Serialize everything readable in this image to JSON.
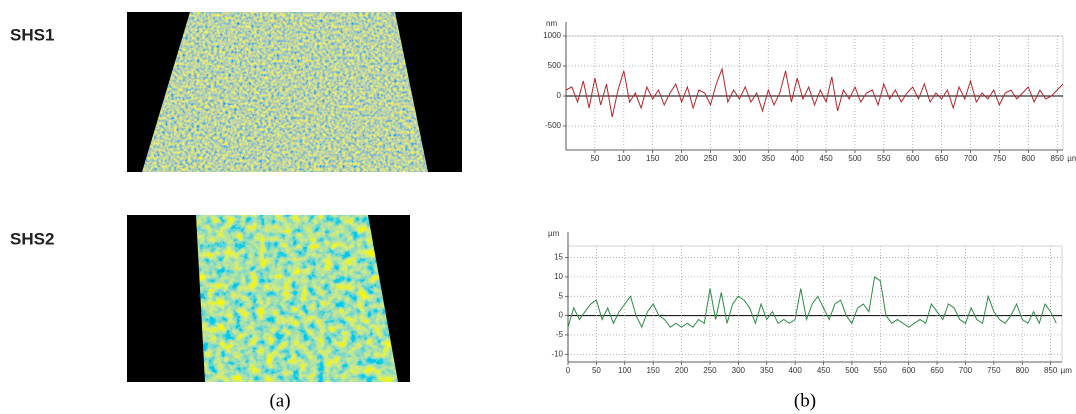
{
  "labels": {
    "sample_1": "SHS1",
    "sample_2": "SHS2",
    "panel_a": "(a)",
    "panel_b": "(b)"
  },
  "chart_data": [
    {
      "type": "line",
      "y_unit": "nm",
      "x_unit": "µm",
      "color": "#b3262b",
      "grid": true,
      "x": [
        0,
        10,
        20,
        30,
        40,
        50,
        60,
        70,
        80,
        90,
        100,
        110,
        120,
        130,
        140,
        150,
        160,
        170,
        180,
        190,
        200,
        210,
        220,
        230,
        240,
        250,
        260,
        270,
        280,
        290,
        300,
        310,
        320,
        330,
        340,
        350,
        360,
        370,
        380,
        390,
        400,
        410,
        420,
        430,
        440,
        450,
        460,
        470,
        480,
        490,
        500,
        510,
        520,
        530,
        540,
        550,
        560,
        570,
        580,
        590,
        600,
        610,
        620,
        630,
        640,
        650,
        660,
        670,
        680,
        690,
        700,
        710,
        720,
        730,
        740,
        750,
        760,
        770,
        780,
        790,
        800,
        810,
        820,
        830,
        840,
        850,
        860
      ],
      "values": [
        100,
        150,
        -100,
        250,
        -200,
        300,
        -150,
        200,
        -350,
        100,
        420,
        -100,
        50,
        -200,
        150,
        -50,
        100,
        -150,
        50,
        200,
        -100,
        150,
        -200,
        100,
        50,
        -150,
        200,
        450,
        -100,
        100,
        -50,
        150,
        -100,
        50,
        -250,
        100,
        -150,
        50,
        420,
        -100,
        300,
        -50,
        150,
        -150,
        100,
        -100,
        320,
        -250,
        100,
        -50,
        150,
        -100,
        50,
        100,
        -150,
        200,
        -50,
        100,
        -100,
        50,
        150,
        -50,
        200,
        -100,
        50,
        -50,
        100,
        -200,
        150,
        -50,
        250,
        -100,
        50,
        -50,
        100,
        -150,
        50,
        100,
        -50,
        50,
        150,
        -100,
        100,
        -50,
        0,
        100,
        200
      ],
      "xlim": [
        0,
        860
      ],
      "ylim": [
        -900,
        1000
      ],
      "xticks": [
        50,
        100,
        150,
        200,
        250,
        300,
        350,
        400,
        450,
        500,
        550,
        600,
        650,
        700,
        750,
        800,
        850
      ],
      "yticks": [
        1000,
        500,
        0,
        -500
      ]
    },
    {
      "type": "line",
      "y_unit": "µm",
      "x_unit": "µm",
      "color": "#2e8b45",
      "grid": true,
      "x": [
        0,
        10,
        20,
        30,
        40,
        50,
        60,
        70,
        80,
        90,
        100,
        110,
        120,
        130,
        140,
        150,
        160,
        170,
        180,
        190,
        200,
        210,
        220,
        230,
        240,
        250,
        260,
        270,
        280,
        290,
        300,
        310,
        320,
        330,
        340,
        350,
        360,
        370,
        380,
        390,
        400,
        410,
        420,
        430,
        440,
        450,
        460,
        470,
        480,
        490,
        500,
        510,
        520,
        530,
        540,
        550,
        560,
        570,
        580,
        590,
        600,
        610,
        620,
        630,
        640,
        650,
        660,
        670,
        680,
        690,
        700,
        710,
        720,
        730,
        740,
        750,
        760,
        770,
        780,
        790,
        800,
        810,
        820,
        830,
        840,
        850,
        860
      ],
      "values": [
        -3,
        2,
        -1,
        1,
        3,
        4,
        -1,
        2,
        -2,
        1,
        3,
        5,
        0,
        -3,
        1,
        3,
        0,
        -1,
        -3,
        -2,
        -3,
        -2,
        -3,
        -1,
        -2,
        7,
        -1,
        6,
        -2,
        3,
        5,
        4,
        2,
        -2,
        3,
        -1,
        1,
        -2,
        -1,
        -2,
        -1,
        7,
        -1,
        3,
        5,
        2,
        -1,
        3,
        4,
        0,
        -2,
        2,
        3,
        1,
        10,
        9,
        0,
        -2,
        -1,
        -2,
        -3,
        -2,
        -1,
        -2,
        3,
        1,
        -1,
        3,
        2,
        -1,
        -2,
        2,
        -1,
        -2,
        5,
        1,
        -1,
        -2,
        0,
        3,
        -1,
        -2,
        1,
        -2,
        3,
        1,
        -2
      ],
      "xlim": [
        0,
        870
      ],
      "ylim": [
        -12,
        18
      ],
      "xticks": [
        0,
        50,
        100,
        150,
        200,
        250,
        300,
        350,
        400,
        450,
        500,
        550,
        600,
        650,
        700,
        750,
        800,
        850
      ],
      "yticks": [
        15,
        10,
        5,
        0,
        -5,
        -10
      ]
    }
  ]
}
